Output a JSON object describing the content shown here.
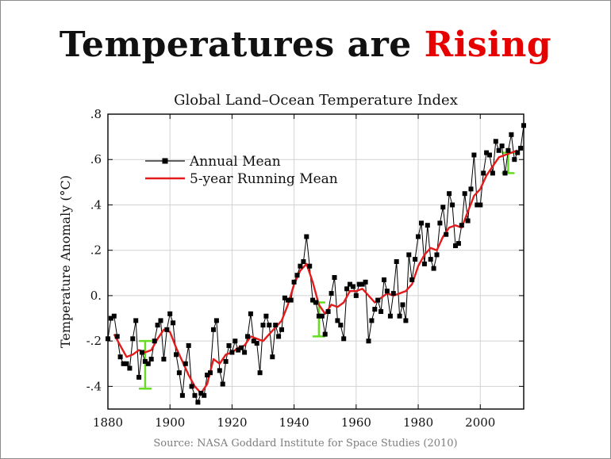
{
  "slide": {
    "title_prefix": "Temperatures are ",
    "title_highlight": "Rising",
    "source": "Source: NASA Goddard Institute for Space Studies (2010)"
  },
  "colors": {
    "annual": "#000000",
    "running": "#e31b1b",
    "uncertainty": "#66dd22",
    "grid": "#d2d2d2",
    "highlight": "#e60000"
  },
  "chart_data": {
    "type": "line",
    "title": "Global Land–Ocean Temperature Index",
    "xlabel": "",
    "ylabel": "Temperature Anomaly (°C)",
    "xlim": [
      1880,
      2014
    ],
    "ylim": [
      -0.5,
      0.8
    ],
    "x_ticks": [
      1880,
      1900,
      1920,
      1940,
      1960,
      1980,
      2000
    ],
    "y_ticks": [
      -0.4,
      -0.2,
      0.0,
      0.2,
      0.4,
      0.6,
      0.8
    ],
    "y_tick_labels": [
      "-.4",
      "-.2",
      "0.",
      ".2",
      ".4",
      ".6",
      ".8"
    ],
    "grid": true,
    "legend_position": "top-left",
    "series": [
      {
        "name": "Annual Mean",
        "x": [
          1880,
          1881,
          1882,
          1883,
          1884,
          1885,
          1886,
          1887,
          1888,
          1889,
          1890,
          1891,
          1892,
          1893,
          1894,
          1895,
          1896,
          1897,
          1898,
          1899,
          1900,
          1901,
          1902,
          1903,
          1904,
          1905,
          1906,
          1907,
          1908,
          1909,
          1910,
          1911,
          1912,
          1913,
          1914,
          1915,
          1916,
          1917,
          1918,
          1919,
          1920,
          1921,
          1922,
          1923,
          1924,
          1925,
          1926,
          1927,
          1928,
          1929,
          1930,
          1931,
          1932,
          1933,
          1934,
          1935,
          1936,
          1937,
          1938,
          1939,
          1940,
          1941,
          1942,
          1943,
          1944,
          1945,
          1946,
          1947,
          1948,
          1949,
          1950,
          1951,
          1952,
          1953,
          1954,
          1955,
          1956,
          1957,
          1958,
          1959,
          1960,
          1961,
          1962,
          1963,
          1964,
          1965,
          1966,
          1967,
          1968,
          1969,
          1970,
          1971,
          1972,
          1973,
          1974,
          1975,
          1976,
          1977,
          1978,
          1979,
          1980,
          1981,
          1982,
          1983,
          1984,
          1985,
          1986,
          1987,
          1988,
          1989,
          1990,
          1991,
          1992,
          1993,
          1994,
          1995,
          1996,
          1997,
          1998,
          1999,
          2000,
          2001,
          2002,
          2003,
          2004,
          2005,
          2006,
          2007,
          2008,
          2009,
          2010,
          2011,
          2012,
          2013,
          2014
        ],
        "values": [
          -0.19,
          -0.1,
          -0.09,
          -0.18,
          -0.27,
          -0.3,
          -0.3,
          -0.32,
          -0.19,
          -0.11,
          -0.36,
          -0.25,
          -0.29,
          -0.3,
          -0.28,
          -0.2,
          -0.13,
          -0.11,
          -0.28,
          -0.15,
          -0.08,
          -0.12,
          -0.26,
          -0.34,
          -0.44,
          -0.3,
          -0.22,
          -0.4,
          -0.44,
          -0.47,
          -0.43,
          -0.44,
          -0.35,
          -0.34,
          -0.15,
          -0.11,
          -0.33,
          -0.39,
          -0.29,
          -0.22,
          -0.25,
          -0.2,
          -0.24,
          -0.23,
          -0.25,
          -0.18,
          -0.08,
          -0.2,
          -0.21,
          -0.34,
          -0.13,
          -0.09,
          -0.13,
          -0.27,
          -0.13,
          -0.18,
          -0.15,
          -0.01,
          -0.02,
          -0.02,
          0.06,
          0.09,
          0.13,
          0.15,
          0.26,
          0.13,
          -0.02,
          -0.03,
          -0.09,
          -0.09,
          -0.17,
          -0.07,
          0.01,
          0.08,
          -0.11,
          -0.13,
          -0.19,
          0.03,
          0.05,
          0.04,
          0.0,
          0.05,
          0.05,
          0.06,
          -0.2,
          -0.11,
          -0.06,
          -0.02,
          -0.07,
          0.07,
          0.02,
          -0.09,
          0.01,
          0.15,
          -0.09,
          -0.04,
          -0.11,
          0.18,
          0.07,
          0.16,
          0.26,
          0.32,
          0.14,
          0.31,
          0.16,
          0.12,
          0.18,
          0.32,
          0.39,
          0.27,
          0.45,
          0.4,
          0.22,
          0.23,
          0.31,
          0.45,
          0.33,
          0.47,
          0.62,
          0.4,
          0.4,
          0.54,
          0.63,
          0.62,
          0.54,
          0.68,
          0.64,
          0.66,
          0.54,
          0.64,
          0.71,
          0.6,
          0.63,
          0.65,
          0.75
        ]
      },
      {
        "name": "5-year Running Mean",
        "x": [
          1882,
          1884,
          1886,
          1888,
          1890,
          1892,
          1894,
          1896,
          1898,
          1900,
          1902,
          1904,
          1906,
          1908,
          1910,
          1912,
          1914,
          1916,
          1918,
          1920,
          1922,
          1924,
          1926,
          1928,
          1930,
          1932,
          1934,
          1936,
          1938,
          1940,
          1942,
          1944,
          1946,
          1948,
          1950,
          1952,
          1954,
          1956,
          1958,
          1960,
          1962,
          1964,
          1966,
          1968,
          1970,
          1972,
          1974,
          1976,
          1978,
          1980,
          1982,
          1984,
          1986,
          1988,
          1990,
          1992,
          1994,
          1996,
          1998,
          2000,
          2002,
          2004,
          2006,
          2008,
          2010,
          2012
        ],
        "values": [
          -0.17,
          -0.22,
          -0.27,
          -0.26,
          -0.24,
          -0.25,
          -0.24,
          -0.19,
          -0.15,
          -0.16,
          -0.23,
          -0.29,
          -0.35,
          -0.4,
          -0.43,
          -0.39,
          -0.28,
          -0.3,
          -0.26,
          -0.25,
          -0.23,
          -0.22,
          -0.18,
          -0.19,
          -0.2,
          -0.17,
          -0.14,
          -0.11,
          -0.04,
          0.05,
          0.11,
          0.14,
          0.06,
          -0.04,
          -0.08,
          -0.04,
          -0.05,
          -0.03,
          0.02,
          0.02,
          0.03,
          0.0,
          -0.03,
          -0.01,
          0.01,
          0.0,
          0.01,
          0.02,
          0.05,
          0.13,
          0.18,
          0.21,
          0.2,
          0.26,
          0.3,
          0.31,
          0.3,
          0.37,
          0.44,
          0.47,
          0.53,
          0.57,
          0.61,
          0.62,
          0.63,
          0.64
        ]
      }
    ],
    "uncertainty_bars": [
      {
        "x": 1892,
        "low": -0.41,
        "high": -0.2
      },
      {
        "x": 1948,
        "low": -0.18,
        "high": -0.03
      },
      {
        "x": 2009,
        "low": 0.54,
        "high": 0.63
      }
    ]
  }
}
